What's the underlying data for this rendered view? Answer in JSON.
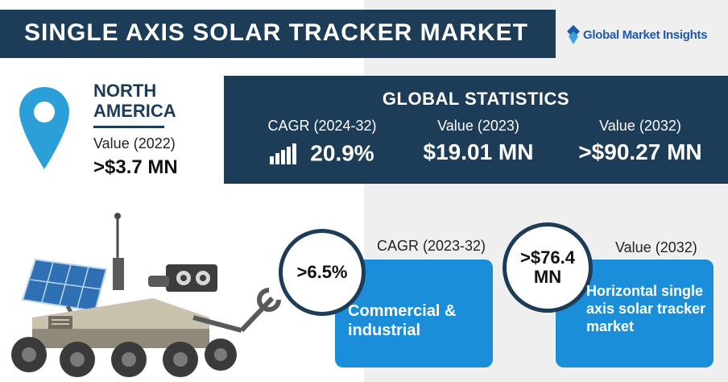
{
  "header": {
    "title": "SINGLE AXIS SOLAR TRACKER MARKET",
    "logo_text": "Global Market Insights"
  },
  "region": {
    "name": "NORTH AMERICA",
    "value_label": "Value (2022)",
    "value": ">$3.7 MN",
    "icon": "map-pin-icon"
  },
  "global_statistics": {
    "title": "GLOBAL STATISTICS",
    "items": [
      {
        "label": "CAGR (2024-32)",
        "value": "20.9%",
        "icon": "bar-chart-icon"
      },
      {
        "label": "Value (2023)",
        "value": "$19.01 MN"
      },
      {
        "label": "Value (2032)",
        "value": ">$90.27 MN"
      }
    ]
  },
  "segments": [
    {
      "metric_label": "CAGR (2023-32)",
      "value": ">6.5%",
      "description": "Commercial & industrial"
    },
    {
      "metric_label": "Value (2032)",
      "value": ">$76.4 MN",
      "description": "Horizontal single axis solar tracker market"
    }
  ],
  "colors": {
    "navy": "#1d3c57",
    "blue": "#1a8ed8",
    "pin_blue": "#2a9fd8",
    "logo_blue": "#1e5aa8"
  },
  "illustration": {
    "icon": "solar-rover-icon"
  }
}
